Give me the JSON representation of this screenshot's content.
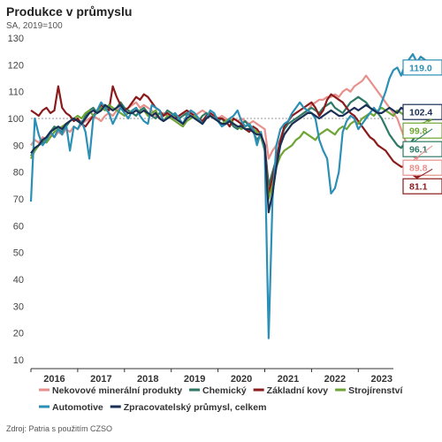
{
  "title": "Produkce v průmyslu",
  "subtitle": "SA, 2019=100",
  "source": "Zdroj: Patria s použitím CZSO",
  "chart_data": {
    "type": "line",
    "x_start": "2016-01",
    "x_step": "month",
    "ylim": [
      10,
      130
    ],
    "yticks": [
      10,
      20,
      30,
      40,
      50,
      60,
      70,
      80,
      90,
      100,
      110,
      120,
      130
    ],
    "xticks": [
      "2016",
      "2017",
      "2018",
      "2019",
      "2020",
      "2021",
      "2022",
      "2023"
    ],
    "reference_line": 100,
    "grid": false,
    "legend_position": "bottom",
    "series": [
      {
        "name": "Nekovové minerální produkty",
        "color": "#e8908c",
        "end_label": "89.8",
        "values": [
          90,
          92,
          91,
          93,
          92,
          94,
          93,
          95,
          94,
          96,
          95,
          97,
          96,
          98,
          99,
          100,
          101,
          100,
          99,
          101,
          102,
          101,
          103,
          104,
          103,
          104,
          105,
          106,
          104,
          105,
          104,
          103,
          101,
          100,
          102,
          101,
          101,
          100,
          101,
          102,
          101,
          102,
          101,
          102,
          103,
          102,
          101,
          100,
          100,
          101,
          100,
          99,
          100,
          99,
          100,
          99,
          98,
          99,
          98,
          97,
          96,
          85,
          88,
          90,
          92,
          94,
          96,
          98,
          99,
          101,
          102,
          103,
          105,
          106,
          107,
          107,
          108,
          108,
          109,
          108,
          110,
          111,
          110,
          112,
          113,
          114,
          116,
          114,
          112,
          110,
          108,
          106,
          104,
          102,
          100,
          96,
          92,
          88,
          86,
          85,
          87,
          88,
          89,
          89.8
        ]
      },
      {
        "name": "Chemický",
        "color": "#2e7a66",
        "end_label": "96.1",
        "values": [
          86,
          88,
          90,
          91,
          93,
          95,
          97,
          96,
          95,
          97,
          99,
          100,
          99,
          98,
          101,
          103,
          104,
          102,
          103,
          105,
          104,
          103,
          104,
          106,
          104,
          103,
          102,
          101,
          103,
          104,
          102,
          101,
          100,
          102,
          101,
          103,
          102,
          101,
          100,
          101,
          102,
          101,
          100,
          99,
          101,
          102,
          101,
          100,
          99,
          100,
          98,
          99,
          97,
          96,
          98,
          99,
          97,
          95,
          92,
          94,
          90,
          75,
          80,
          85,
          92,
          96,
          98,
          99,
          100,
          101,
          102,
          103,
          104,
          103,
          102,
          104,
          105,
          106,
          104,
          103,
          102,
          104,
          106,
          107,
          108,
          107,
          106,
          104,
          103,
          102,
          100,
          97,
          94,
          92,
          90,
          89,
          91,
          90,
          92,
          94,
          93,
          95,
          95,
          96.1
        ]
      },
      {
        "name": "Základní kovy",
        "color": "#8b1a1a",
        "end_label": "81.1",
        "values": [
          103,
          102,
          101,
          103,
          104,
          102,
          103,
          112,
          104,
          102,
          101,
          99,
          100,
          98,
          97,
          99,
          101,
          103,
          105,
          104,
          103,
          112,
          108,
          105,
          103,
          104,
          106,
          108,
          107,
          109,
          108,
          106,
          104,
          103,
          101,
          102,
          101,
          100,
          101,
          102,
          103,
          102,
          101,
          100,
          99,
          101,
          102,
          101,
          100,
          100,
          99,
          97,
          100,
          99,
          98,
          96,
          95,
          97,
          96,
          94,
          90,
          72,
          78,
          85,
          92,
          97,
          99,
          101,
          102,
          103,
          104,
          105,
          106,
          104,
          101,
          103,
          107,
          109,
          108,
          107,
          106,
          104,
          102,
          101,
          99,
          97,
          95,
          93,
          92,
          90,
          89,
          88,
          86,
          84,
          83,
          82,
          82,
          80,
          79,
          78,
          79,
          80,
          80,
          81.1
        ]
      },
      {
        "name": "Strojírenství",
        "color": "#6fa534",
        "end_label": "99.8",
        "values": [
          85,
          88,
          90,
          92,
          91,
          93,
          95,
          96,
          97,
          98,
          99,
          100,
          101,
          100,
          102,
          103,
          101,
          102,
          104,
          103,
          105,
          104,
          103,
          102,
          101,
          102,
          103,
          104,
          102,
          103,
          101,
          102,
          103,
          100,
          99,
          101,
          100,
          99,
          98,
          97,
          99,
          100,
          101,
          99,
          98,
          100,
          101,
          100,
          99,
          98,
          99,
          100,
          98,
          97,
          96,
          97,
          98,
          96,
          95,
          93,
          88,
          70,
          75,
          82,
          86,
          88,
          89,
          90,
          92,
          93,
          95,
          94,
          93,
          92,
          94,
          95,
          96,
          95,
          94,
          96,
          97,
          96,
          98,
          99,
          98,
          100,
          101,
          102,
          101,
          103,
          104,
          103,
          102,
          101,
          103,
          102,
          101,
          104,
          103,
          102,
          103,
          100,
          99,
          99.8
        ]
      },
      {
        "name": "Automotive",
        "color": "#2c8fb5",
        "end_label": "119.0",
        "values": [
          69,
          100,
          94,
          90,
          92,
          95,
          93,
          96,
          94,
          98,
          88,
          97,
          96,
          99,
          95,
          85,
          100,
          103,
          106,
          104,
          102,
          98,
          101,
          104,
          102,
          100,
          103,
          104,
          101,
          99,
          98,
          105,
          104,
          103,
          99,
          100,
          101,
          102,
          100,
          98,
          101,
          103,
          102,
          100,
          98,
          100,
          103,
          102,
          99,
          97,
          98,
          100,
          101,
          103,
          99,
          97,
          98,
          96,
          90,
          95,
          88,
          18,
          70,
          90,
          96,
          98,
          99,
          102,
          104,
          106,
          104,
          103,
          102,
          100,
          92,
          88,
          85,
          72,
          74,
          80,
          95,
          99,
          101,
          100,
          96,
          98,
          100,
          102,
          104,
          102,
          106,
          110,
          115,
          118,
          119,
          116,
          120,
          122,
          124,
          121,
          123,
          122,
          120,
          119.0
        ]
      },
      {
        "name": "Zpracovatelský průmysl, celkem",
        "color": "#1a2f55",
        "end_label": "102.4",
        "values": [
          87,
          89,
          90,
          92,
          93,
          95,
          96,
          97,
          96,
          98,
          99,
          100,
          99,
          98,
          100,
          102,
          103,
          102,
          103,
          105,
          104,
          103,
          104,
          105,
          103,
          102,
          102,
          103,
          102,
          103,
          102,
          101,
          102,
          100,
          99,
          100,
          101,
          100,
          99,
          98,
          100,
          101,
          100,
          99,
          98,
          100,
          101,
          100,
          99,
          98,
          98,
          99,
          98,
          97,
          97,
          96,
          96,
          95,
          94,
          94,
          90,
          65,
          72,
          82,
          90,
          94,
          96,
          98,
          99,
          100,
          101,
          102,
          102,
          101,
          100,
          101,
          102,
          103,
          102,
          101,
          101,
          102,
          103,
          104,
          103,
          104,
          105,
          104,
          103,
          102,
          102,
          103,
          104,
          103,
          102,
          104,
          103,
          104,
          103,
          102,
          103,
          104,
          103,
          102.4
        ]
      }
    ]
  }
}
